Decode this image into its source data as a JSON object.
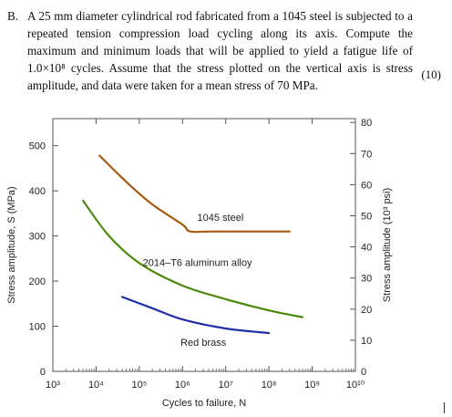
{
  "problem": {
    "label": "B.",
    "text": "A 25 mm diameter cylindrical rod fabricated from a 1045 steel is subjected to a repeated tension compression load cycling along its axis. Compute the maximum and minimum loads that will be applied to yield a fatigue life of 1.0×10⁸ cycles. Assume that the stress plotted on the vertical axis is stress amplitude, and data were taken for a mean stress of 70 MPa.",
    "marks": "(10)"
  },
  "chart_data": {
    "type": "line",
    "xlabel": "Cycles to failure, N",
    "ylabel_left": "Stress amplitude, S (MPa)",
    "ylabel_right": "Stress amplitude (10³ psi)",
    "x_scale": "log",
    "xlim": [
      1000,
      10000000000
    ],
    "x_ticks": [
      {
        "value": 1000,
        "label": "10³"
      },
      {
        "value": 10000,
        "label": "10⁴"
      },
      {
        "value": 100000,
        "label": "10⁵"
      },
      {
        "value": 1000000,
        "label": "10⁶"
      },
      {
        "value": 10000000,
        "label": "10⁷"
      },
      {
        "value": 100000000,
        "label": "10⁸"
      },
      {
        "value": 1000000000,
        "label": "10⁹"
      },
      {
        "value": 10000000000,
        "label": "10¹⁰"
      }
    ],
    "ylim_left": [
      0,
      560
    ],
    "y_ticks_left": [
      0,
      100,
      200,
      300,
      400,
      500
    ],
    "y_ticks_right": [
      0,
      10,
      20,
      30,
      40,
      50,
      60,
      70,
      80
    ],
    "grid": false,
    "series": [
      {
        "name": "1045 steel",
        "color": "#a65a12",
        "points": [
          [
            12000,
            478
          ],
          [
            50000,
            420
          ],
          [
            200000,
            370
          ],
          [
            1000000,
            325
          ],
          [
            1500000,
            310
          ],
          [
            5000000,
            310
          ],
          [
            300000000,
            310
          ]
        ]
      },
      {
        "name": "2014–T6 aluminum alloy",
        "color": "#4c8a0e",
        "points": [
          [
            5000,
            378
          ],
          [
            20000,
            300
          ],
          [
            100000,
            240
          ],
          [
            1000000,
            190
          ],
          [
            10000000,
            160
          ],
          [
            100000000,
            135
          ],
          [
            600000000,
            120
          ]
        ]
      },
      {
        "name": "Red brass",
        "color": "#1f2fa8",
        "points": [
          [
            40000,
            165
          ],
          [
            200000,
            140
          ],
          [
            1000000,
            115
          ],
          [
            10000000,
            95
          ],
          [
            100000000,
            85
          ]
        ]
      }
    ]
  }
}
